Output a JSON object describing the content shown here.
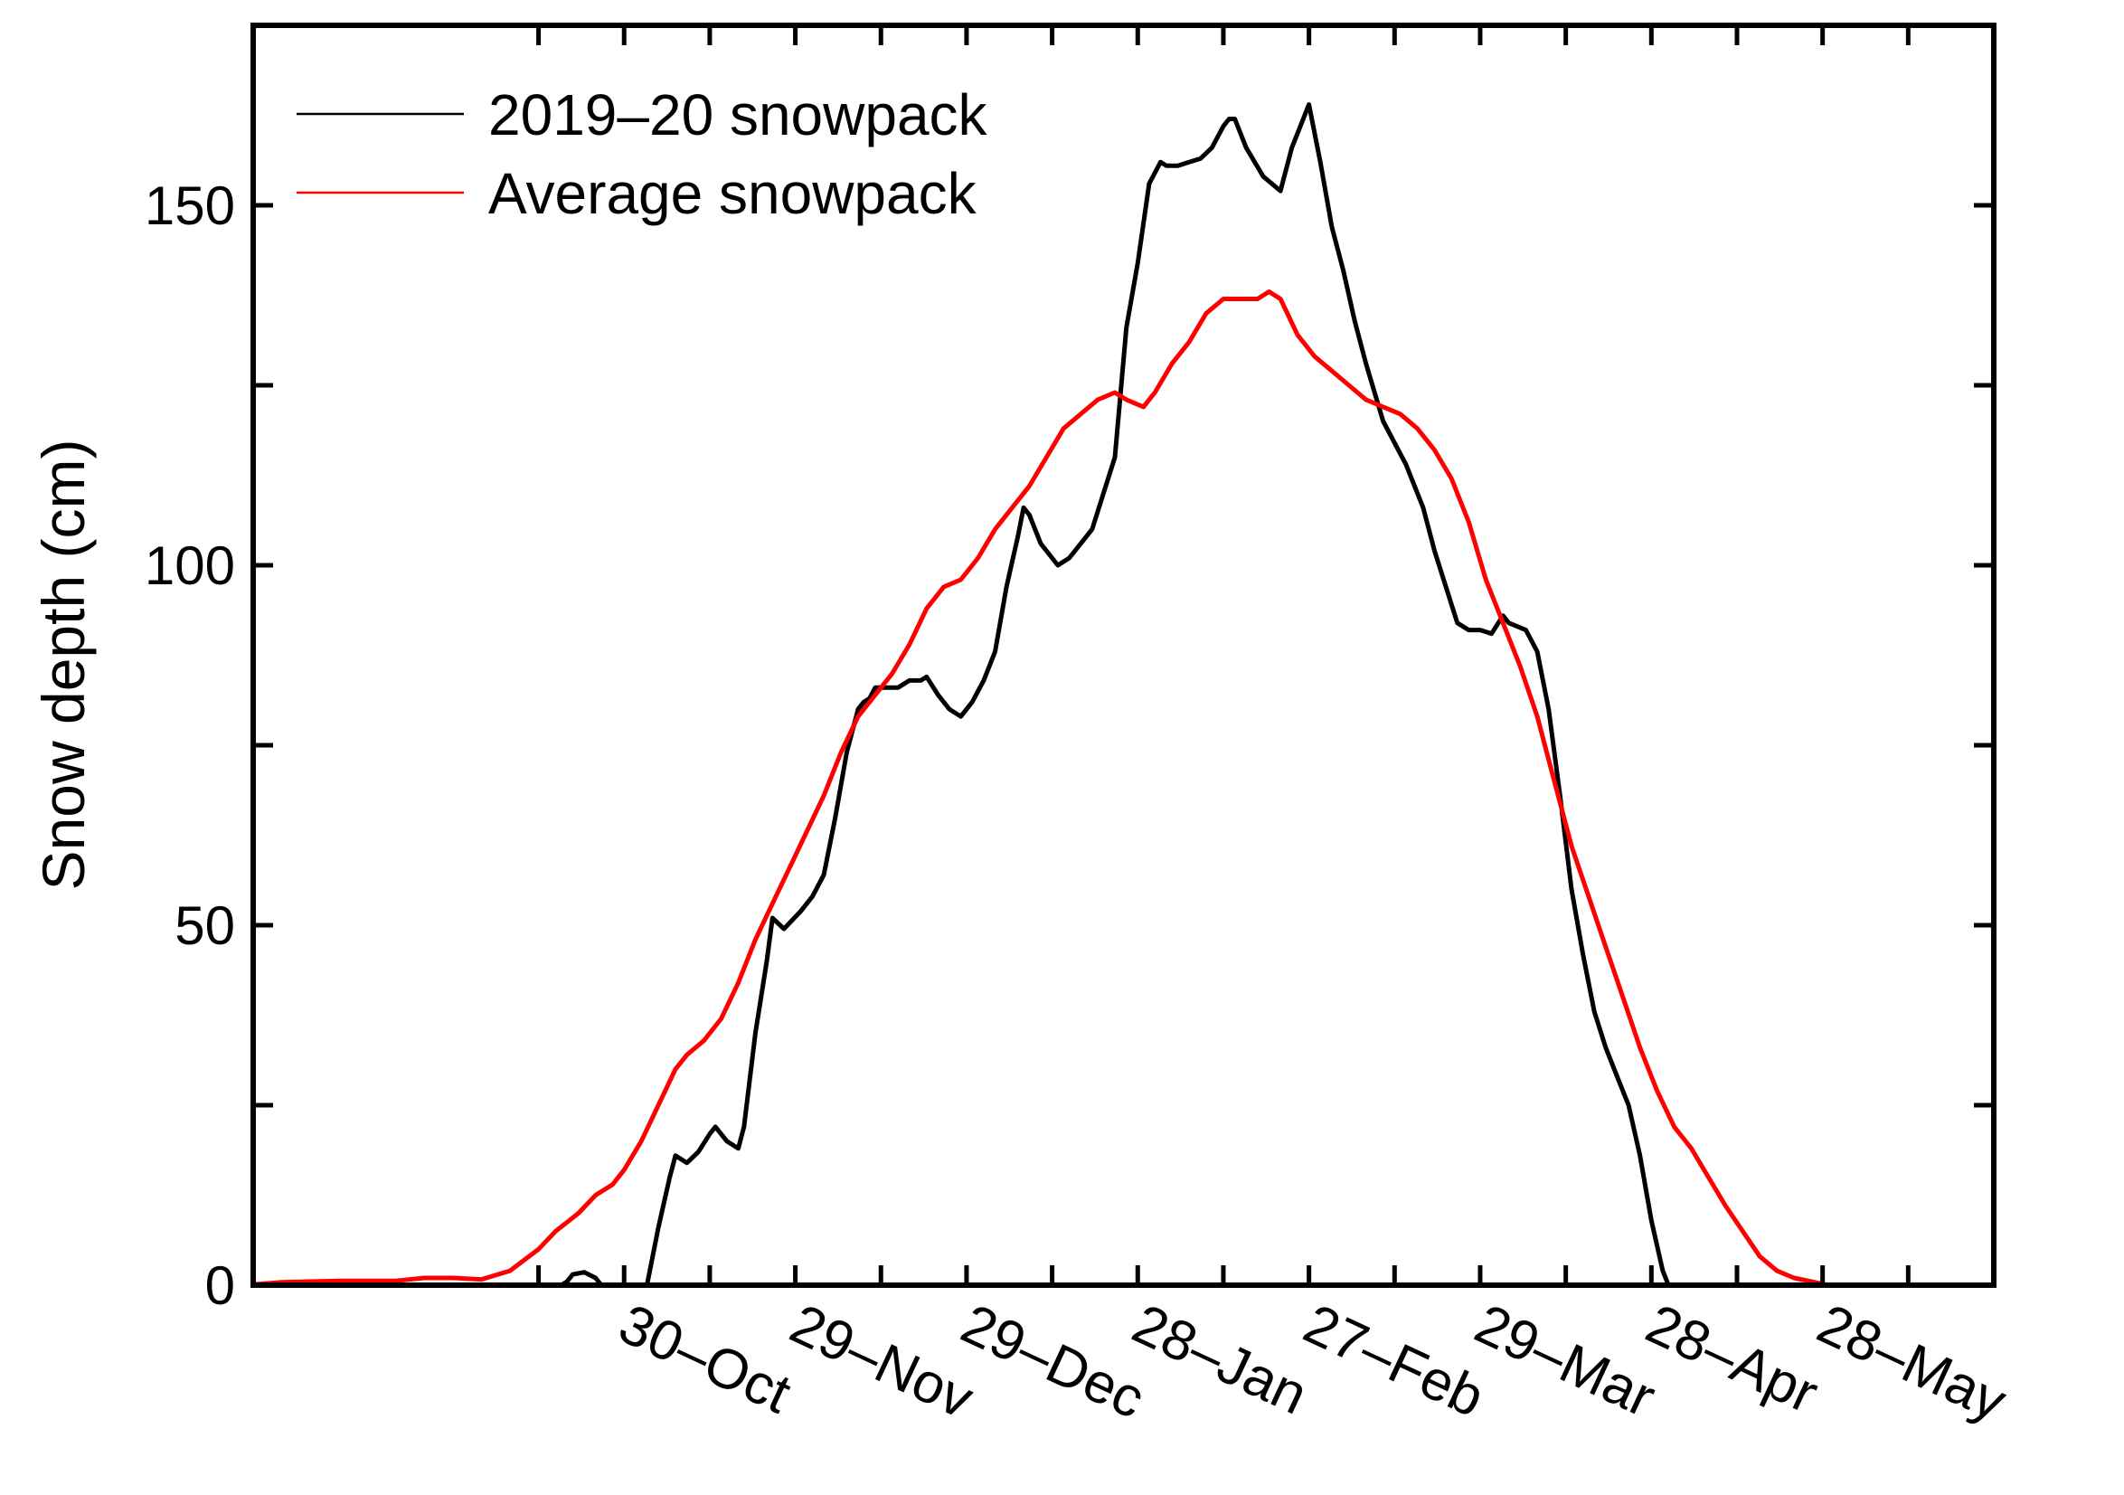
{
  "chart_data": {
    "type": "line",
    "title": "",
    "xlabel": "",
    "ylabel": "Snow depth (cm)",
    "xlim": [
      -65,
      240
    ],
    "ylim": [
      0,
      175
    ],
    "yticks": [
      0,
      50,
      100,
      150
    ],
    "y_minor_ticks": [
      25,
      75,
      125
    ],
    "x_ticks": [
      {
        "day": 0,
        "label": "30–Oct"
      },
      {
        "day": 30,
        "label": "29–Nov"
      },
      {
        "day": 60,
        "label": "29–Dec"
      },
      {
        "day": 90,
        "label": "28–Jan"
      },
      {
        "day": 120,
        "label": "27–Feb"
      },
      {
        "day": 150,
        "label": "29–Mar"
      },
      {
        "day": 180,
        "label": "28–Apr"
      },
      {
        "day": 210,
        "label": "28–May"
      }
    ],
    "x_minor_ticks": [
      -15,
      15,
      45,
      75,
      105,
      135,
      165,
      195,
      225
    ],
    "legend": {
      "position": "top-left"
    },
    "series": [
      {
        "name": "2019–20 snowpack",
        "color": "#000000",
        "points": [
          [
            -20,
            0
          ],
          [
            -11,
            0
          ],
          [
            -10,
            0.5
          ],
          [
            -9,
            1.5
          ],
          [
            -7,
            1.8
          ],
          [
            -5,
            1
          ],
          [
            -4,
            0
          ],
          [
            4,
            0
          ],
          [
            6,
            8
          ],
          [
            8,
            15
          ],
          [
            9,
            18
          ],
          [
            11,
            17
          ],
          [
            13,
            18.5
          ],
          [
            15,
            21
          ],
          [
            16,
            22
          ],
          [
            18,
            20
          ],
          [
            20,
            19
          ],
          [
            21,
            22
          ],
          [
            23,
            35
          ],
          [
            25,
            45
          ],
          [
            26,
            51
          ],
          [
            28,
            49.5
          ],
          [
            31,
            52
          ],
          [
            33,
            54
          ],
          [
            35,
            57
          ],
          [
            37,
            65
          ],
          [
            39,
            74
          ],
          [
            41,
            80
          ],
          [
            42,
            81
          ],
          [
            43,
            81.5
          ],
          [
            44,
            83
          ],
          [
            46,
            83
          ],
          [
            48,
            83
          ],
          [
            50,
            84
          ],
          [
            52,
            84
          ],
          [
            53,
            84.5
          ],
          [
            55,
            82
          ],
          [
            57,
            80
          ],
          [
            59,
            79
          ],
          [
            61,
            81
          ],
          [
            63,
            84
          ],
          [
            65,
            88
          ],
          [
            67,
            97
          ],
          [
            69,
            104
          ],
          [
            70,
            108
          ],
          [
            71,
            107
          ],
          [
            73,
            103
          ],
          [
            75,
            101
          ],
          [
            76,
            100
          ],
          [
            78,
            101
          ],
          [
            80,
            103
          ],
          [
            82,
            105
          ],
          [
            84,
            110
          ],
          [
            86,
            115
          ],
          [
            88,
            133
          ],
          [
            90,
            142
          ],
          [
            92,
            153
          ],
          [
            94,
            156
          ],
          [
            95,
            155.5
          ],
          [
            97,
            155.5
          ],
          [
            99,
            156
          ],
          [
            101,
            156.5
          ],
          [
            103,
            158
          ],
          [
            105,
            161
          ],
          [
            106,
            162
          ],
          [
            107,
            162
          ],
          [
            109,
            158
          ],
          [
            112,
            154
          ],
          [
            115,
            152
          ],
          [
            117,
            158
          ],
          [
            119,
            162
          ],
          [
            120,
            164
          ],
          [
            122,
            156
          ],
          [
            124,
            147
          ],
          [
            126,
            141
          ],
          [
            128,
            134
          ],
          [
            130,
            128
          ],
          [
            133,
            120
          ],
          [
            135,
            117
          ],
          [
            137,
            114
          ],
          [
            140,
            108
          ],
          [
            142,
            102
          ],
          [
            144,
            97
          ],
          [
            146,
            92
          ],
          [
            148,
            91
          ],
          [
            150,
            91
          ],
          [
            152,
            90.5
          ],
          [
            154,
            93
          ],
          [
            155,
            92
          ],
          [
            158,
            91
          ],
          [
            160,
            88
          ],
          [
            162,
            80
          ],
          [
            164,
            68
          ],
          [
            166,
            55
          ],
          [
            168,
            46
          ],
          [
            170,
            38
          ],
          [
            172,
            33
          ],
          [
            174,
            29
          ],
          [
            176,
            25
          ],
          [
            178,
            18
          ],
          [
            180,
            9
          ],
          [
            182,
            2
          ],
          [
            183,
            0
          ],
          [
            184,
            0
          ]
        ]
      },
      {
        "name": "Average snowpack",
        "color": "#ff0000",
        "points": [
          [
            -65,
            0.1
          ],
          [
            -60,
            0.4
          ],
          [
            -50,
            0.6
          ],
          [
            -40,
            0.6
          ],
          [
            -35,
            1
          ],
          [
            -30,
            1
          ],
          [
            -25,
            0.8
          ],
          [
            -20,
            2
          ],
          [
            -15,
            5
          ],
          [
            -12,
            7.5
          ],
          [
            -8,
            10
          ],
          [
            -5,
            12.5
          ],
          [
            -2,
            14
          ],
          [
            0,
            16
          ],
          [
            3,
            20
          ],
          [
            6,
            25
          ],
          [
            9,
            30
          ],
          [
            11,
            32
          ],
          [
            14,
            34
          ],
          [
            17,
            37
          ],
          [
            20,
            42
          ],
          [
            23,
            48
          ],
          [
            26,
            53
          ],
          [
            29,
            58
          ],
          [
            32,
            63
          ],
          [
            35,
            68
          ],
          [
            38,
            74
          ],
          [
            41,
            79
          ],
          [
            44,
            82
          ],
          [
            47,
            85
          ],
          [
            50,
            89
          ],
          [
            53,
            94
          ],
          [
            56,
            97
          ],
          [
            59,
            98
          ],
          [
            62,
            101
          ],
          [
            65,
            105
          ],
          [
            68,
            108
          ],
          [
            71,
            111
          ],
          [
            74,
            115
          ],
          [
            77,
            119
          ],
          [
            80,
            121
          ],
          [
            83,
            123
          ],
          [
            86,
            124
          ],
          [
            88,
            123
          ],
          [
            91,
            122
          ],
          [
            93,
            124
          ],
          [
            96,
            128
          ],
          [
            99,
            131
          ],
          [
            102,
            135
          ],
          [
            105,
            137
          ],
          [
            108,
            137
          ],
          [
            111,
            137
          ],
          [
            113,
            138
          ],
          [
            115,
            137
          ],
          [
            118,
            132
          ],
          [
            121,
            129
          ],
          [
            124,
            127
          ],
          [
            127,
            125
          ],
          [
            130,
            123
          ],
          [
            133,
            122
          ],
          [
            136,
            121
          ],
          [
            139,
            119
          ],
          [
            142,
            116
          ],
          [
            145,
            112
          ],
          [
            148,
            106
          ],
          [
            151,
            98
          ],
          [
            154,
            92
          ],
          [
            157,
            86
          ],
          [
            160,
            79
          ],
          [
            163,
            70
          ],
          [
            166,
            61
          ],
          [
            169,
            54
          ],
          [
            172,
            47
          ],
          [
            175,
            40
          ],
          [
            178,
            33
          ],
          [
            181,
            27
          ],
          [
            184,
            22
          ],
          [
            187,
            19
          ],
          [
            190,
            15
          ],
          [
            193,
            11
          ],
          [
            196,
            7.5
          ],
          [
            199,
            4
          ],
          [
            202,
            2
          ],
          [
            205,
            1
          ],
          [
            208,
            0.5
          ],
          [
            211,
            0
          ],
          [
            215,
            0
          ],
          [
            220,
            0
          ]
        ]
      }
    ]
  }
}
